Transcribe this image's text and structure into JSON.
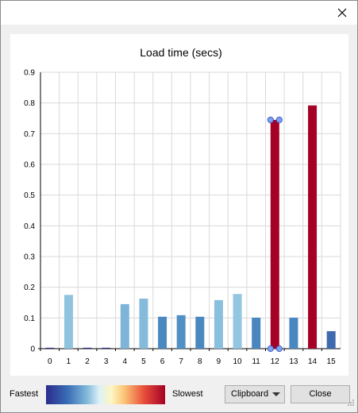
{
  "window": {
    "close_icon": "close-icon"
  },
  "legend": {
    "fastest_label": "Fastest",
    "slowest_label": "Slowest",
    "gradient_colors": [
      "#2b2c8c",
      "#3a6cb5",
      "#7fb7d9",
      "#dff2f7",
      "#fdf6c0",
      "#fbc276",
      "#e8503a",
      "#a50026"
    ]
  },
  "controls": {
    "clipboard_label": "Clipboard",
    "close_label": "Close"
  },
  "chart_data": {
    "type": "bar",
    "title": "Load time (secs)",
    "xlabel": "",
    "ylabel": "",
    "categories": [
      "0",
      "1",
      "2",
      "3",
      "4",
      "5",
      "6",
      "7",
      "8",
      "9",
      "10",
      "11",
      "12",
      "13",
      "14",
      "15"
    ],
    "values": [
      0.003,
      0.175,
      0.003,
      0.003,
      0.145,
      0.163,
      0.104,
      0.109,
      0.104,
      0.158,
      0.178,
      0.101,
      0.745,
      0.101,
      0.792,
      0.057
    ],
    "colors": [
      "#2d2f85",
      "#8fc3de",
      "#2d2f85",
      "#2d2f85",
      "#7db4d8",
      "#84bbdb",
      "#4c88c0",
      "#5090c5",
      "#4c88c0",
      "#8abfdd",
      "#93c6e0",
      "#4a86bf",
      "#a50026",
      "#4a86bf",
      "#a50026",
      "#3e6aae"
    ],
    "selected_index": 12,
    "ylim": [
      0,
      0.9
    ],
    "yticks": [
      "0",
      "0.1",
      "0.2",
      "0.3",
      "0.4",
      "0.5",
      "0.6",
      "0.7",
      "0.8",
      "0.9"
    ],
    "grid": true
  }
}
